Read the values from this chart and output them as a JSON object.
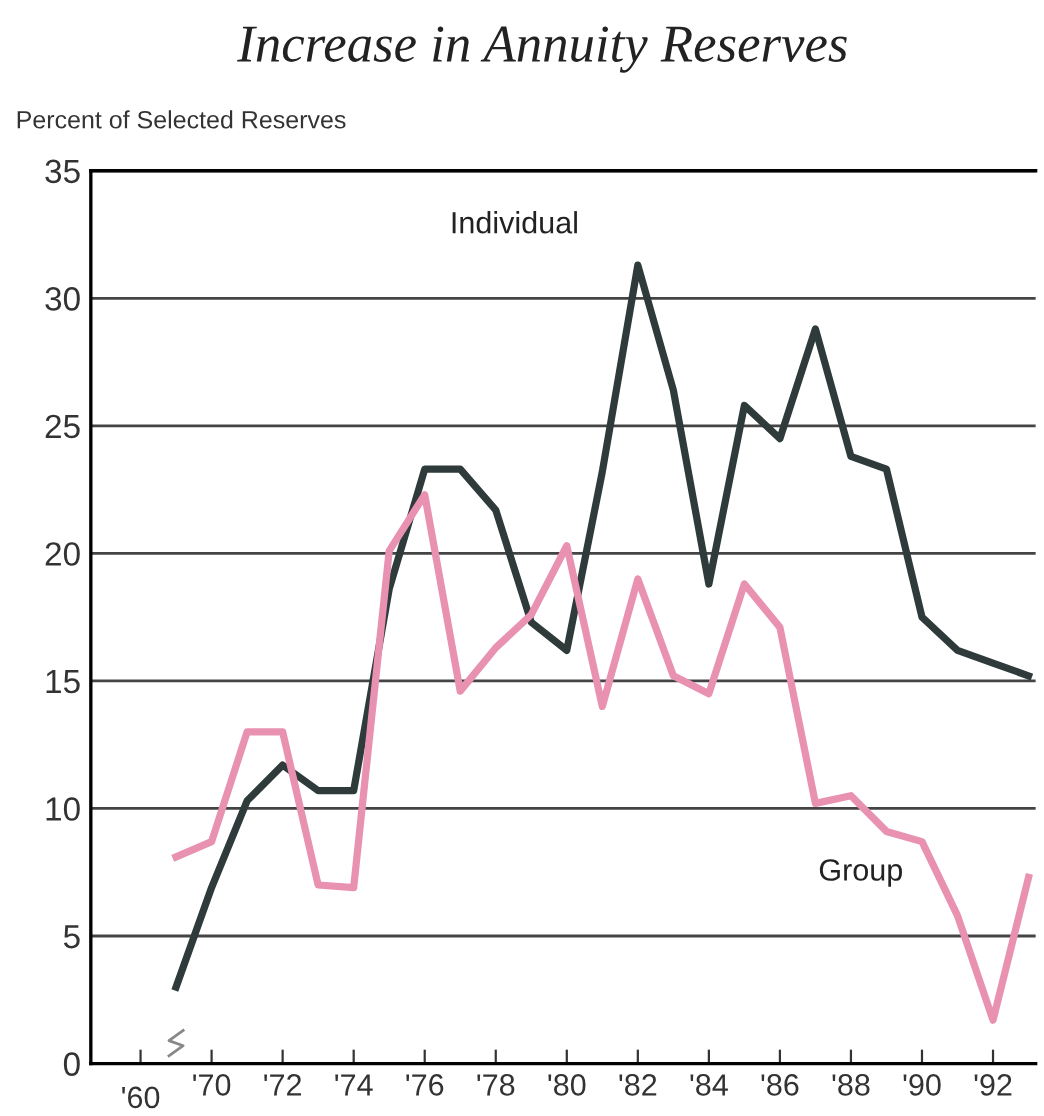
{
  "chart_data": {
    "type": "line",
    "title": "Increase in Annuity Reserves",
    "ylabel": "Percent of Selected Reserves",
    "x": [
      1969,
      1970,
      1971,
      1972,
      1973,
      1974,
      1975,
      1976,
      1977,
      1978,
      1979,
      1980,
      1981,
      1982,
      1983,
      1984,
      1985,
      1986,
      1987,
      1988,
      1989,
      1990,
      1991,
      1992,
      1993
    ],
    "series": [
      {
        "name": "Individual",
        "color": "#2f3b3b",
        "values": [
          3.0,
          6.9,
          10.3,
          11.7,
          10.7,
          10.7,
          18.6,
          23.3,
          23.3,
          21.7,
          17.3,
          16.2,
          23.2,
          31.3,
          26.4,
          18.8,
          25.8,
          24.5,
          28.8,
          23.8,
          23.3,
          17.5,
          16.2,
          15.7,
          15.2
        ]
      },
      {
        "name": "Group",
        "color": "#e891b1",
        "values": [
          8.1,
          8.7,
          13.0,
          13.0,
          7.0,
          6.9,
          20.1,
          22.3,
          14.6,
          16.3,
          17.6,
          20.3,
          14.0,
          19.0,
          15.2,
          14.5,
          18.8,
          17.1,
          10.2,
          10.5,
          9.1,
          8.7,
          5.8,
          1.7,
          7.3
        ]
      }
    ],
    "xlim": [
      1966.6,
      1993.2
    ],
    "ylim": [
      0,
      35
    ],
    "annotations": [
      "'60"
    ],
    "xticks": [
      {
        "value": 1968,
        "label": null
      },
      {
        "value": 1970,
        "label": "'70"
      },
      {
        "value": 1972,
        "label": "'72"
      },
      {
        "value": 1974,
        "label": "'74"
      },
      {
        "value": 1976,
        "label": "'76"
      },
      {
        "value": 1978,
        "label": "'78"
      },
      {
        "value": 1980,
        "label": "'80"
      },
      {
        "value": 1982,
        "label": "'82"
      },
      {
        "value": 1984,
        "label": "'84"
      },
      {
        "value": 1986,
        "label": "'86"
      },
      {
        "value": 1988,
        "label": "'88"
      },
      {
        "value": 1990,
        "label": "'90"
      },
      {
        "value": 1992,
        "label": "'92"
      }
    ],
    "yticks": [
      0,
      5,
      10,
      15,
      20,
      25,
      30,
      35
    ],
    "grid": "y",
    "legend": false,
    "line_style": "solid",
    "marker": "none"
  }
}
